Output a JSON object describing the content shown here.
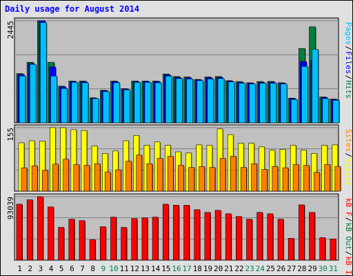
{
  "colors": {
    "background": "#e0e0e0",
    "plot_bg": "#c0c0c0",
    "hits": "#008040",
    "files": "#0000ff",
    "pages": "#00c0ff",
    "visits": "#ffff00",
    "sites": "#ff8000",
    "kbin": "#ff0000",
    "title": "#0000ff",
    "weekend": "#00805c",
    "weekday": "#000000"
  },
  "chart_data": {
    "type": "bar",
    "title": "Daily usage for August 2014",
    "categories": [
      "1",
      "2",
      "3",
      "4",
      "5",
      "6",
      "7",
      "8",
      "9",
      "10",
      "11",
      "12",
      "13",
      "14",
      "15",
      "16",
      "17",
      "18",
      "19",
      "20",
      "21",
      "22",
      "23",
      "24",
      "25",
      "26",
      "27",
      "28",
      "29",
      "30",
      "31"
    ],
    "weekend_days": [
      "9",
      "10",
      "16",
      "17",
      "23",
      "24",
      "30",
      "31"
    ],
    "panels": [
      {
        "id": "top",
        "max_label": "2445",
        "ylim": [
          0,
          2445
        ],
        "legend": [
          {
            "label": "Hits",
            "color": "#008040"
          },
          {
            "label": "Files",
            "color": "#0000ff"
          },
          {
            "label": "Pages",
            "color": "#00c0ff"
          }
        ],
        "separators": [
          "/",
          "/"
        ],
        "series": [
          {
            "name": "Hits",
            "values": [
              1180,
              1450,
              2445,
              1450,
              880,
              1000,
              1000,
              600,
              780,
              1000,
              820,
              1000,
              1000,
              1000,
              1170,
              1110,
              1100,
              1040,
              1100,
              1110,
              1010,
              990,
              960,
              990,
              990,
              960,
              590,
              1780,
              2300,
              620,
              570
            ]
          },
          {
            "name": "Files",
            "values": [
              1160,
              1420,
              2445,
              1340,
              860,
              990,
              990,
              590,
              770,
              990,
              810,
              990,
              990,
              990,
              1150,
              1090,
              1080,
              1030,
              1080,
              1090,
              1000,
              970,
              950,
              970,
              980,
              950,
              580,
              1470,
              1500,
              610,
              560
            ]
          },
          {
            "name": "Pages",
            "values": [
              1120,
              1400,
              2400,
              1120,
              820,
              970,
              960,
              580,
              750,
              960,
              790,
              970,
              970,
              960,
              1120,
              1060,
              1050,
              1010,
              1050,
              1060,
              980,
              950,
              930,
              950,
              950,
              930,
              560,
              1350,
              1760,
              580,
              540
            ]
          }
        ]
      },
      {
        "id": "middle",
        "max_label": "155",
        "ylim": [
          0,
          155
        ],
        "legend": [
          {
            "label": "Visits",
            "color": "#ffff00"
          },
          {
            "label": "Sites",
            "color": "#ff8000"
          }
        ],
        "separators": [
          "/"
        ],
        "series": [
          {
            "name": "Visits",
            "values": [
              118,
              123,
              122,
              155,
              155,
              150,
              148,
              110,
              92,
              98,
              123,
              136,
              112,
              120,
              112,
              96,
              93,
              113,
              112,
              152,
              138,
              117,
              117,
              108,
              100,
              102,
              112,
              100,
              92,
              112,
              113
            ]
          },
          {
            "name": "Sites",
            "values": [
              57,
              62,
              51,
              66,
              78,
              65,
              63,
              67,
              47,
              52,
              73,
              88,
              67,
              80,
              85,
              63,
              58,
              60,
              58,
              80,
              85,
              58,
              67,
              53,
              60,
              57,
              65,
              63,
              46,
              65,
              60
            ]
          }
        ]
      },
      {
        "id": "bottom",
        "max_label": "93039",
        "ylim": [
          0,
          93039
        ],
        "legend": [
          {
            "label": "KBytes In",
            "color": "#ff0000"
          },
          {
            "label": "KB Out",
            "color": "#008040"
          },
          {
            "label": "KB F",
            "color": "#ff0000"
          }
        ],
        "legend_display": [
          "kB In",
          "kB Out",
          "kB F"
        ],
        "separators": [
          "/",
          "/"
        ],
        "series": [
          {
            "name": "KBytes",
            "values": [
              82000,
              88500,
              93039,
              78000,
              48000,
              60000,
              58000,
              30000,
              49000,
              63000,
              48000,
              61000,
              62000,
              63000,
              82000,
              80500,
              80500,
              74000,
              70000,
              73000,
              68000,
              64000,
              60000,
              70000,
              68000,
              60000,
              32000,
              81000,
              70000,
              33000,
              31000
            ]
          }
        ]
      }
    ]
  }
}
